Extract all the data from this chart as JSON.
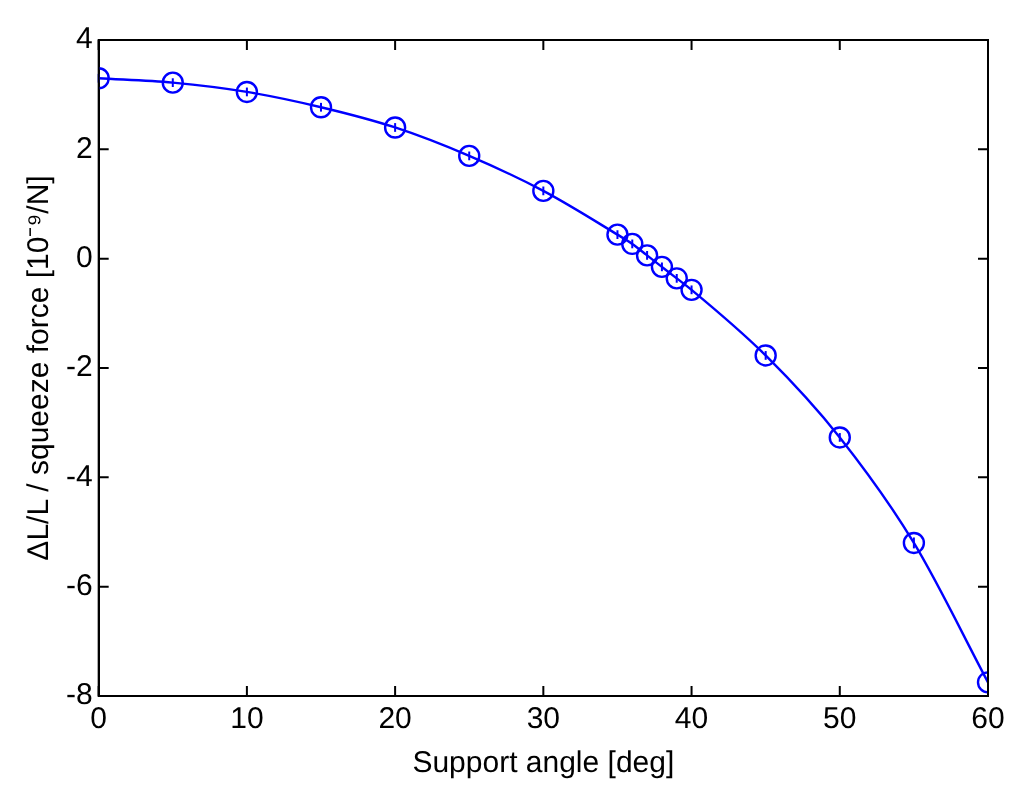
{
  "chart_data": {
    "type": "line",
    "xlabel": "Support angle [deg]",
    "ylabel": "ΔL/L / squeeze force [10⁻⁹/N]",
    "x": [
      0,
      5,
      10,
      15,
      20,
      25,
      30,
      35,
      36,
      37,
      38,
      39,
      40,
      45,
      50,
      55,
      60
    ],
    "series": [
      {
        "color": "#0000ff",
        "marker": "circle",
        "line_style": "solid",
        "values": [
          3.3,
          3.22,
          3.05,
          2.77,
          2.4,
          1.88,
          1.24,
          0.44,
          0.27,
          0.06,
          -0.15,
          -0.36,
          -0.57,
          -1.77,
          -3.27,
          -5.2,
          -7.75
        ],
        "errors": [
          0.08,
          0.08,
          0.08,
          0.08,
          0.08,
          0.08,
          0.08,
          0.08,
          0.08,
          0.08,
          0.08,
          0.08,
          0.08,
          0.08,
          0.08,
          0.1,
          0.1
        ]
      }
    ],
    "xlim": [
      0,
      60
    ],
    "xticks": [
      0,
      10,
      20,
      30,
      40,
      50,
      60
    ],
    "ylim": [
      -8,
      4
    ],
    "yticks": [
      -8,
      -6,
      -4,
      -2,
      0,
      2,
      4
    ],
    "grid": false,
    "legend": false
  }
}
